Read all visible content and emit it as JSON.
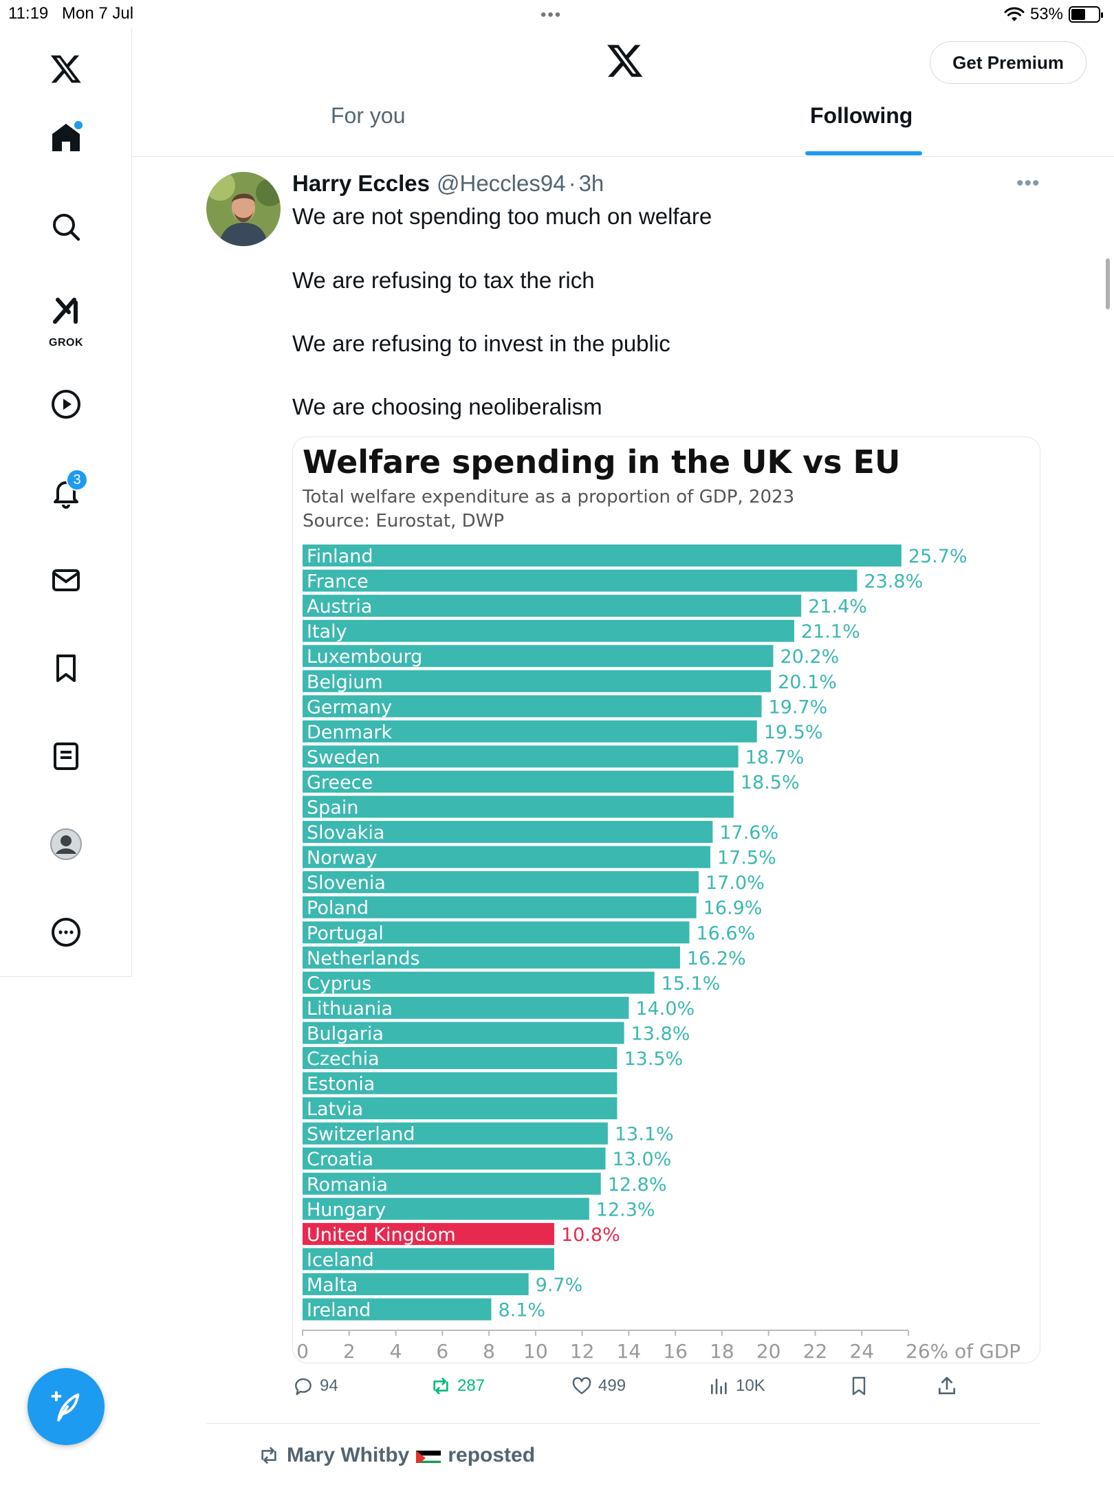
{
  "status_bar": {
    "time": "11:19",
    "date": "Mon 7 Jul",
    "battery": "53%",
    "battery_level": 0.53
  },
  "sidebar": {
    "items": [
      {
        "name": "home",
        "icon": "home-icon"
      },
      {
        "name": "search",
        "icon": "search-icon"
      },
      {
        "name": "grok",
        "icon": "grok-icon",
        "label": "GROK"
      },
      {
        "name": "videos",
        "icon": "play-icon"
      },
      {
        "name": "notifications",
        "icon": "bell-icon",
        "badge": "3"
      },
      {
        "name": "messages",
        "icon": "mail-icon"
      },
      {
        "name": "bookmarks",
        "icon": "bookmark-icon"
      },
      {
        "name": "lists",
        "icon": "list-icon"
      },
      {
        "name": "profile",
        "icon": "avatar-icon"
      },
      {
        "name": "more",
        "icon": "more-icon"
      }
    ],
    "compose_icon": "compose-icon"
  },
  "header": {
    "premium_label": "Get Premium",
    "tabs": [
      {
        "label": "For you",
        "active": false
      },
      {
        "label": "Following",
        "active": true
      }
    ]
  },
  "tweet": {
    "name": "Harry Eccles",
    "handle": "@Heccles94",
    "time": "3h",
    "lines": [
      "We are not spending too much on welfare",
      "We are refusing to tax the rich",
      "We are refusing to invest in the public",
      "We are choosing neoliberalism"
    ],
    "actions": {
      "replies": "94",
      "reposts": "287",
      "likes": "499",
      "views": "10K"
    }
  },
  "chart_data": {
    "type": "bar",
    "orientation": "horizontal",
    "title": "Welfare spending in the UK vs EU",
    "subtitle": "Total welfare expenditure as a proportion of GDP, 2023",
    "source": "Source: Eurostat, DWP",
    "xlim": [
      0,
      26
    ],
    "x_ticks": [
      "0",
      "2",
      "4",
      "6",
      "8",
      "10",
      "12",
      "14",
      "16",
      "18",
      "20",
      "22",
      "24",
      "26% of GDP"
    ],
    "colors": {
      "default": "#3bb8b0",
      "highlight": "#e8294f",
      "label": "#3bb8b0",
      "highlight_label": "#e8294f"
    },
    "categories": [
      "Finland",
      "France",
      "Austria",
      "Italy",
      "Luxembourg",
      "Belgium",
      "Germany",
      "Denmark",
      "Sweden",
      "Greece",
      "Spain",
      "Slovakia",
      "Norway",
      "Slovenia",
      "Poland",
      "Portugal",
      "Netherlands",
      "Cyprus",
      "Lithuania",
      "Bulgaria",
      "Czechia",
      "Estonia",
      "Latvia",
      "Switzerland",
      "Croatia",
      "Romania",
      "Hungary",
      "United Kingdom",
      "Iceland",
      "Malta",
      "Ireland"
    ],
    "values": [
      25.7,
      23.8,
      21.4,
      21.1,
      20.2,
      20.1,
      19.7,
      19.5,
      18.7,
      18.5,
      18.5,
      17.6,
      17.5,
      17.0,
      16.9,
      16.6,
      16.2,
      15.1,
      14.0,
      13.8,
      13.5,
      13.5,
      13.5,
      13.1,
      13.0,
      12.8,
      12.3,
      10.8,
      10.8,
      9.7,
      8.1
    ],
    "value_labels": [
      "25.7%",
      "23.8%",
      "21.4%",
      "21.1%",
      "20.2%",
      "20.1%",
      "19.7%",
      "19.5%",
      "18.7%",
      "18.5%",
      "",
      "17.6%",
      "17.5%",
      "17.0%",
      "16.9%",
      "16.6%",
      "16.2%",
      "15.1%",
      "14.0%",
      "13.8%",
      "13.5%",
      "",
      "",
      "13.1%",
      "13.0%",
      "12.8%",
      "12.3%",
      "10.8%",
      "",
      "9.7%",
      "8.1%"
    ],
    "highlight": "United Kingdom"
  },
  "next_tweet": {
    "reposted_by": "Mary Whitby",
    "reposted_label": "reposted"
  }
}
